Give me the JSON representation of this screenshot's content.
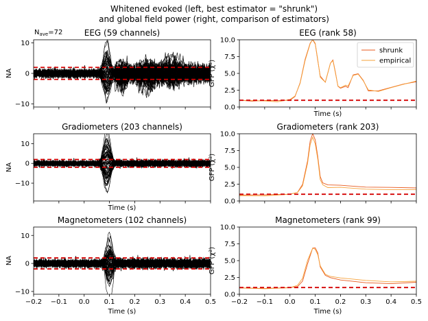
{
  "figure": {
    "suptitle_line1": "Whitened evoked (left, best estimator = \"shrunk\")",
    "suptitle_line2": "and global field power (right, comparison of estimators)",
    "nave_label": "N",
    "nave_sub": "ave",
    "nave_value": "=72"
  },
  "colors": {
    "trace": "#000000",
    "ref_line": "#d40000",
    "shrunk": "#e8581c",
    "empirical": "#f6a23a"
  },
  "chart_data": [
    {
      "type": "line",
      "title": "EEG (59 channels)",
      "ylabel": "NA",
      "xlabel": "",
      "xlim": [
        -0.2,
        0.5
      ],
      "ylim": [
        -11,
        11
      ],
      "xticks": [
        -0.2,
        -0.1,
        0.0,
        0.1,
        0.2,
        0.3,
        0.4,
        0.5
      ],
      "yticks": [
        -10,
        0,
        10
      ],
      "series": [
        {
          "role": "traces",
          "n_channels": 59,
          "baseline_std": 0.9,
          "peak_amp": 8,
          "peak_times": [
            0.09,
            0.15,
            0.25,
            0.35
          ]
        }
      ],
      "ref_lines_y": [
        -1.96,
        1.96
      ]
    },
    {
      "type": "line",
      "title": "EEG (rank 58)",
      "ylabel": "GFP (χ²)",
      "xlabel": "Time (s)",
      "xlim": [
        -0.2,
        0.5
      ],
      "ylim": [
        0,
        10
      ],
      "xticks": [
        -0.2,
        -0.1,
        0.0,
        0.1,
        0.2,
        0.3,
        0.4,
        0.5
      ],
      "yticks": [
        0.0,
        2.5,
        5.0,
        7.5,
        10.0
      ],
      "legend": [
        "shrunk",
        "empirical"
      ],
      "legend_position": "top-right",
      "series": [
        {
          "name": "shrunk",
          "x": [
            -0.2,
            -0.15,
            -0.1,
            -0.05,
            0.0,
            0.02,
            0.04,
            0.06,
            0.08,
            0.09,
            0.1,
            0.11,
            0.12,
            0.14,
            0.15,
            0.16,
            0.17,
            0.18,
            0.19,
            0.2,
            0.22,
            0.23,
            0.25,
            0.27,
            0.29,
            0.31,
            0.35,
            0.4,
            0.45,
            0.5
          ],
          "y": [
            1.0,
            0.95,
            1.0,
            0.9,
            1.1,
            1.6,
            3.5,
            7.0,
            9.4,
            10.0,
            9.5,
            7.0,
            4.5,
            3.6,
            5.0,
            6.5,
            7.0,
            5.0,
            3.0,
            2.8,
            3.2,
            3.0,
            4.8,
            5.0,
            4.0,
            2.5,
            2.3,
            3.0,
            3.5,
            3.8
          ]
        },
        {
          "name": "empirical",
          "x": [
            -0.2,
            -0.15,
            -0.1,
            -0.05,
            0.0,
            0.02,
            0.04,
            0.06,
            0.08,
            0.09,
            0.1,
            0.11,
            0.12,
            0.14,
            0.15,
            0.16,
            0.17,
            0.18,
            0.19,
            0.2,
            0.22,
            0.23,
            0.25,
            0.27,
            0.29,
            0.31,
            0.35,
            0.4,
            0.45,
            0.5
          ],
          "y": [
            1.0,
            0.95,
            1.0,
            0.9,
            1.1,
            1.6,
            3.5,
            7.0,
            9.4,
            10.0,
            9.5,
            7.0,
            4.5,
            3.6,
            5.0,
            6.5,
            7.0,
            5.0,
            3.0,
            2.8,
            3.2,
            3.0,
            4.8,
            5.0,
            4.0,
            2.5,
            2.3,
            3.0,
            3.5,
            3.8
          ]
        }
      ],
      "ref_lines_y": [
        1.0
      ]
    },
    {
      "type": "line",
      "title": "Gradiometers (203 channels)",
      "ylabel": "NA",
      "xlabel": "Time (s)",
      "xlim": [
        -0.2,
        0.5
      ],
      "ylim": [
        -19,
        15
      ],
      "xticks": [
        -0.2,
        -0.1,
        0.0,
        0.1,
        0.2,
        0.3,
        0.4,
        0.5
      ],
      "yticks": [
        -10,
        0,
        10
      ],
      "series": [
        {
          "role": "traces",
          "n_channels": 203,
          "baseline_std": 0.9,
          "peak_amp": 14,
          "peak_times": [
            0.09
          ]
        }
      ],
      "ref_lines_y": [
        -1.96,
        1.96
      ]
    },
    {
      "type": "line",
      "title": "Gradiometers (rank 203)",
      "ylabel": "GFP (χ²)",
      "xlabel": "",
      "xlim": [
        -0.2,
        0.5
      ],
      "ylim": [
        0,
        10
      ],
      "xticks": [
        -0.2,
        -0.1,
        0.0,
        0.1,
        0.2,
        0.3,
        0.4,
        0.5
      ],
      "yticks": [
        0.0,
        2.5,
        5.0,
        7.5,
        10.0
      ],
      "series": [
        {
          "name": "shrunk",
          "x": [
            -0.2,
            -0.1,
            0.0,
            0.03,
            0.05,
            0.07,
            0.08,
            0.09,
            0.1,
            0.11,
            0.12,
            0.13,
            0.15,
            0.2,
            0.3,
            0.4,
            0.5
          ],
          "y": [
            0.95,
            0.9,
            1.0,
            1.3,
            2.5,
            6.0,
            8.8,
            10.0,
            9.0,
            6.5,
            3.5,
            2.6,
            2.3,
            2.4,
            2.1,
            2.0,
            2.0
          ]
        },
        {
          "name": "empirical",
          "x": [
            -0.2,
            -0.1,
            0.0,
            0.03,
            0.05,
            0.07,
            0.08,
            0.09,
            0.1,
            0.11,
            0.12,
            0.13,
            0.15,
            0.2,
            0.3,
            0.4,
            0.5
          ],
          "y": [
            0.9,
            0.85,
            0.95,
            1.2,
            2.3,
            5.6,
            8.3,
            9.5,
            8.6,
            6.1,
            3.2,
            2.3,
            2.0,
            2.1,
            1.8,
            1.7,
            1.7
          ]
        }
      ],
      "ref_lines_y": [
        1.0
      ]
    },
    {
      "type": "line",
      "title": "Magnetometers (102 channels)",
      "ylabel": "NA",
      "xlabel": "Time (s)",
      "xlim": [
        -0.2,
        0.5
      ],
      "ylim": [
        -11,
        13
      ],
      "xticks": [
        -0.2,
        -0.1,
        0.0,
        0.1,
        0.2,
        0.3,
        0.4,
        0.5
      ],
      "xticklabels": [
        "−0.2",
        "−0.1",
        "0.0",
        "0.1",
        "0.2",
        "0.3",
        "0.4",
        "0.5"
      ],
      "yticks": [
        -10,
        0,
        10
      ],
      "series": [
        {
          "role": "traces",
          "n_channels": 102,
          "baseline_std": 0.9,
          "peak_amp": 9,
          "peak_times": [
            0.1
          ]
        }
      ],
      "ref_lines_y": [
        -1.96,
        1.96
      ]
    },
    {
      "type": "line",
      "title": "Magnetometers (rank 99)",
      "ylabel": "GFP (χ²)",
      "xlabel": "Time (s)",
      "xlim": [
        -0.2,
        0.5
      ],
      "ylim": [
        0,
        10
      ],
      "xticks": [
        -0.2,
        -0.1,
        0.0,
        0.1,
        0.2,
        0.3,
        0.4,
        0.5
      ],
      "xticklabels": [
        "−0.2",
        "−0.1",
        "0.0",
        "0.1",
        "0.2",
        "0.3",
        "0.4",
        "0.5"
      ],
      "yticks": [
        0.0,
        2.5,
        5.0,
        7.5,
        10.0
      ],
      "series": [
        {
          "name": "shrunk",
          "x": [
            -0.2,
            -0.1,
            0.0,
            0.03,
            0.05,
            0.07,
            0.09,
            0.1,
            0.11,
            0.12,
            0.14,
            0.16,
            0.2,
            0.3,
            0.4,
            0.5
          ],
          "y": [
            1.0,
            0.9,
            0.95,
            1.2,
            2.0,
            4.5,
            6.8,
            7.0,
            6.2,
            4.0,
            2.8,
            2.5,
            2.2,
            1.8,
            1.6,
            1.7
          ]
        },
        {
          "name": "empirical",
          "x": [
            -0.2,
            -0.1,
            0.0,
            0.03,
            0.05,
            0.07,
            0.09,
            0.1,
            0.11,
            0.12,
            0.14,
            0.16,
            0.2,
            0.3,
            0.4,
            0.5
          ],
          "y": [
            1.0,
            0.9,
            0.95,
            1.3,
            2.3,
            5.0,
            6.9,
            6.8,
            6.0,
            4.2,
            3.0,
            2.7,
            2.5,
            2.1,
            1.9,
            2.0
          ]
        }
      ],
      "ref_lines_y": [
        1.0
      ]
    }
  ]
}
